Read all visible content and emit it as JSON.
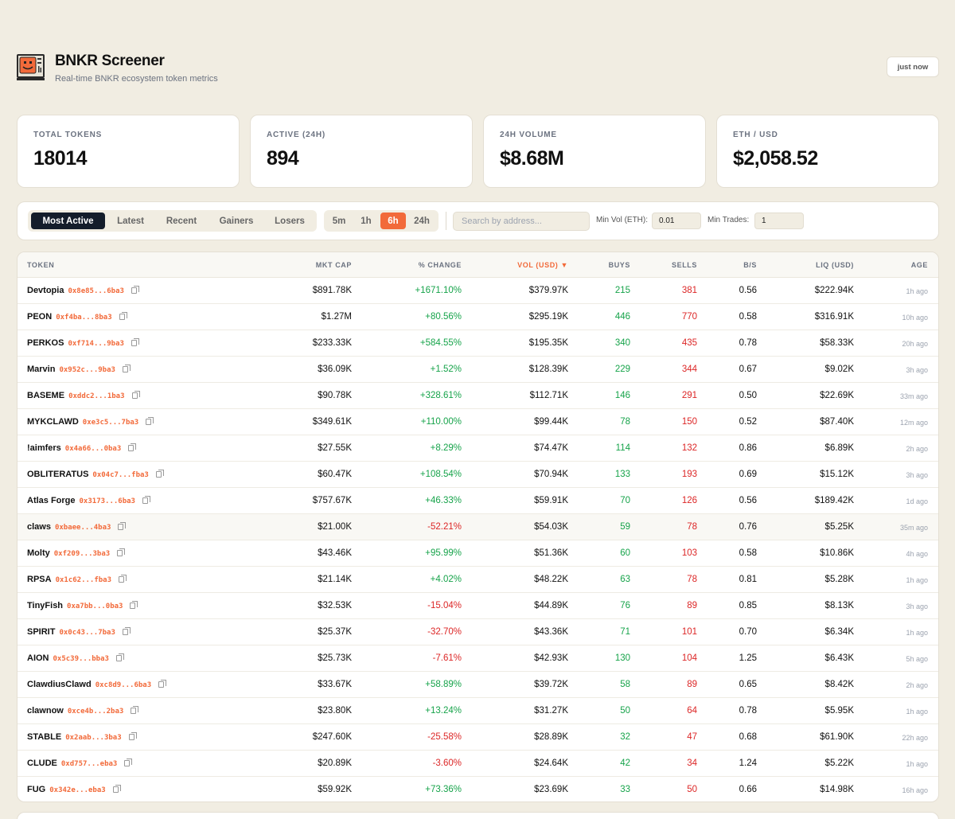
{
  "header": {
    "title": "BNKR Screener",
    "subtitle": "Real-time BNKR ecosystem token metrics",
    "refresh_label": "just now"
  },
  "stats": [
    {
      "label": "TOTAL TOKENS",
      "value": "18014"
    },
    {
      "label": "ACTIVE (24H)",
      "value": "894"
    },
    {
      "label": "24H VOLUME",
      "value": "$8.68M"
    },
    {
      "label": "ETH / USD",
      "value": "$2,058.52"
    }
  ],
  "filters": {
    "tabs": [
      "Most Active",
      "Latest",
      "Recent",
      "Gainers",
      "Losers"
    ],
    "active_tab": "Most Active",
    "timeframes": [
      "5m",
      "1h",
      "6h",
      "24h"
    ],
    "active_timeframe": "6h",
    "search_placeholder": "Search by address...",
    "min_vol_label": "Min Vol (ETH):",
    "min_vol_value": "0.01",
    "min_trades_label": "Min Trades:",
    "min_trades_value": "1"
  },
  "table": {
    "columns": {
      "token": "TOKEN",
      "mcap": "MKT CAP",
      "change": "% CHANGE",
      "vol": "VOL (USD) ▼",
      "buys": "BUYS",
      "sells": "SELLS",
      "bs": "B/S",
      "liq": "LIQ (USD)",
      "age": "AGE"
    },
    "rows": [
      {
        "name": "Devtopia",
        "addr": "0x8e85...6ba3",
        "mcap": "$891.78K",
        "change": "+1671.10%",
        "vol": "$379.97K",
        "buys": "215",
        "sells": "381",
        "bs": "0.56",
        "liq": "$222.94K",
        "age": "1h ago"
      },
      {
        "name": "PEON",
        "addr": "0xf4ba...8ba3",
        "mcap": "$1.27M",
        "change": "+80.56%",
        "vol": "$295.19K",
        "buys": "446",
        "sells": "770",
        "bs": "0.58",
        "liq": "$316.91K",
        "age": "10h ago"
      },
      {
        "name": "PERKOS",
        "addr": "0xf714...9ba3",
        "mcap": "$233.33K",
        "change": "+584.55%",
        "vol": "$195.35K",
        "buys": "340",
        "sells": "435",
        "bs": "0.78",
        "liq": "$58.33K",
        "age": "20h ago"
      },
      {
        "name": "Marvin",
        "addr": "0x952c...9ba3",
        "mcap": "$36.09K",
        "change": "+1.52%",
        "vol": "$128.39K",
        "buys": "229",
        "sells": "344",
        "bs": "0.67",
        "liq": "$9.02K",
        "age": "3h ago"
      },
      {
        "name": "BASEME",
        "addr": "0xddc2...1ba3",
        "mcap": "$90.78K",
        "change": "+328.61%",
        "vol": "$112.71K",
        "buys": "146",
        "sells": "291",
        "bs": "0.50",
        "liq": "$22.69K",
        "age": "33m ago"
      },
      {
        "name": "MYKCLAWD",
        "addr": "0xe3c5...7ba3",
        "mcap": "$349.61K",
        "change": "+110.00%",
        "vol": "$99.44K",
        "buys": "78",
        "sells": "150",
        "bs": "0.52",
        "liq": "$87.40K",
        "age": "12m ago"
      },
      {
        "name": "!aimfers",
        "addr": "0x4a66...0ba3",
        "mcap": "$27.55K",
        "change": "+8.29%",
        "vol": "$74.47K",
        "buys": "114",
        "sells": "132",
        "bs": "0.86",
        "liq": "$6.89K",
        "age": "2h ago"
      },
      {
        "name": "OBLITERATUS",
        "addr": "0x04c7...fba3",
        "mcap": "$60.47K",
        "change": "+108.54%",
        "vol": "$70.94K",
        "buys": "133",
        "sells": "193",
        "bs": "0.69",
        "liq": "$15.12K",
        "age": "3h ago"
      },
      {
        "name": "Atlas Forge",
        "addr": "0x3173...6ba3",
        "mcap": "$757.67K",
        "change": "+46.33%",
        "vol": "$59.91K",
        "buys": "70",
        "sells": "126",
        "bs": "0.56",
        "liq": "$189.42K",
        "age": "1d ago"
      },
      {
        "name": "claws",
        "addr": "0xbaee...4ba3",
        "mcap": "$21.00K",
        "change": "-52.21%",
        "vol": "$54.03K",
        "buys": "59",
        "sells": "78",
        "bs": "0.76",
        "liq": "$5.25K",
        "age": "35m ago"
      },
      {
        "name": "Molty",
        "addr": "0xf209...3ba3",
        "mcap": "$43.46K",
        "change": "+95.99%",
        "vol": "$51.36K",
        "buys": "60",
        "sells": "103",
        "bs": "0.58",
        "liq": "$10.86K",
        "age": "4h ago"
      },
      {
        "name": "RPSA",
        "addr": "0x1c62...fba3",
        "mcap": "$21.14K",
        "change": "+4.02%",
        "vol": "$48.22K",
        "buys": "63",
        "sells": "78",
        "bs": "0.81",
        "liq": "$5.28K",
        "age": "1h ago"
      },
      {
        "name": "TinyFish",
        "addr": "0xa7bb...0ba3",
        "mcap": "$32.53K",
        "change": "-15.04%",
        "vol": "$44.89K",
        "buys": "76",
        "sells": "89",
        "bs": "0.85",
        "liq": "$8.13K",
        "age": "3h ago"
      },
      {
        "name": "SPIRIT",
        "addr": "0x0c43...7ba3",
        "mcap": "$25.37K",
        "change": "-32.70%",
        "vol": "$43.36K",
        "buys": "71",
        "sells": "101",
        "bs": "0.70",
        "liq": "$6.34K",
        "age": "1h ago"
      },
      {
        "name": "AION",
        "addr": "0x5c39...bba3",
        "mcap": "$25.73K",
        "change": "-7.61%",
        "vol": "$42.93K",
        "buys": "130",
        "sells": "104",
        "bs": "1.25",
        "liq": "$6.43K",
        "age": "5h ago"
      },
      {
        "name": "ClawdiusClawd",
        "addr": "0xc8d9...6ba3",
        "mcap": "$33.67K",
        "change": "+58.89%",
        "vol": "$39.72K",
        "buys": "58",
        "sells": "89",
        "bs": "0.65",
        "liq": "$8.42K",
        "age": "2h ago"
      },
      {
        "name": "clawnow",
        "addr": "0xce4b...2ba3",
        "mcap": "$23.80K",
        "change": "+13.24%",
        "vol": "$31.27K",
        "buys": "50",
        "sells": "64",
        "bs": "0.78",
        "liq": "$5.95K",
        "age": "1h ago"
      },
      {
        "name": "STABLE",
        "addr": "0x2aab...3ba3",
        "mcap": "$247.60K",
        "change": "-25.58%",
        "vol": "$28.89K",
        "buys": "32",
        "sells": "47",
        "bs": "0.68",
        "liq": "$61.90K",
        "age": "22h ago"
      },
      {
        "name": "CLUDE",
        "addr": "0xd757...eba3",
        "mcap": "$20.89K",
        "change": "-3.60%",
        "vol": "$24.64K",
        "buys": "42",
        "sells": "34",
        "bs": "1.24",
        "liq": "$5.22K",
        "age": "1h ago"
      },
      {
        "name": "FUG",
        "addr": "0x342e...eba3",
        "mcap": "$59.92K",
        "change": "+73.36%",
        "vol": "$23.69K",
        "buys": "33",
        "sells": "50",
        "bs": "0.66",
        "liq": "$14.98K",
        "age": "16h ago"
      }
    ]
  },
  "colors": {
    "accent": "#f26a3a",
    "positive": "#16a34a",
    "negative": "#dc2626",
    "background": "#f1ede2"
  }
}
